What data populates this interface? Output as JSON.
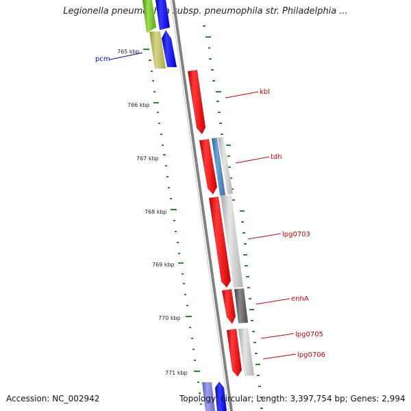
{
  "title": "Legionella pneumophila subsp. pneumophila str. Philadelphia ...",
  "footer": {
    "accession": "Accession: NC_002942",
    "genome_info": "Topology: circular; Length: 3,397,754 bp; Genes: 2,994"
  },
  "scale": {
    "unit": "kbp",
    "ticks": [
      "765 kbp",
      "766 kbp",
      "767 kbp",
      "768 kbp",
      "769 kbp",
      "770 kbp",
      "771 kbp"
    ]
  },
  "genes": [
    {
      "name": "pcm",
      "label_color": "#0000cc"
    },
    {
      "name": "kbl",
      "label_color": "#cc0000"
    },
    {
      "name": "tdh",
      "label_color": "#cc0000"
    },
    {
      "name": "lpg0703",
      "label_color": "#cc0000"
    },
    {
      "name": "enhA",
      "label_color": "#cc0000"
    },
    {
      "name": "lpg0705",
      "label_color": "#cc0000"
    },
    {
      "name": "lpg0706",
      "label_color": "#cc0000"
    }
  ],
  "colors": {
    "forward_strand": "#ff0000",
    "reverse_strand": "#0000ff",
    "gc_skew": "#228b22",
    "backbone": "#808080"
  }
}
